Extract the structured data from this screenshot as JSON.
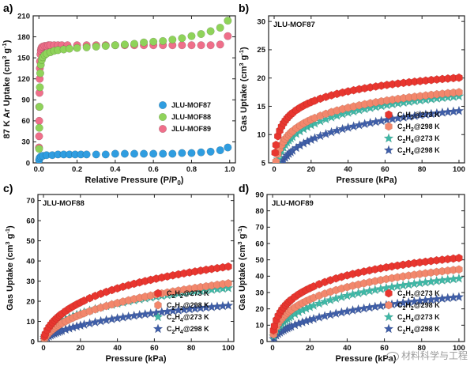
{
  "colors": {
    "red": "#e8362f",
    "salmon": "#f2876c",
    "teal": "#3fb8a6",
    "navy": "#3f5ea8",
    "blue": "#2f9de0",
    "green": "#8fd35a",
    "pink": "#ef6f8a"
  },
  "watermark": "材料科学与工程",
  "chart_data": [
    {
      "panel": "a)",
      "type": "scatter",
      "title": "",
      "xlabel": "Relative Pressure (P/P0)",
      "ylabel": "87 K Ar Uptake (cm3 g-1)",
      "xlim": [
        -0.03,
        1.03
      ],
      "ylim": [
        0,
        210
      ],
      "xticks": [
        0.0,
        0.2,
        0.4,
        0.6,
        0.8,
        1.0
      ],
      "yticks": [
        0,
        30,
        60,
        90,
        120,
        150,
        180,
        210
      ],
      "legend_position": "right",
      "series": [
        {
          "name": "JLU-MOF87",
          "color": "blue",
          "marker": "circle",
          "x": [
            0.001,
            0.004,
            0.01,
            0.02,
            0.04,
            0.07,
            0.1,
            0.13,
            0.16,
            0.19,
            0.22,
            0.25,
            0.3,
            0.35,
            0.4,
            0.45,
            0.5,
            0.55,
            0.6,
            0.65,
            0.7,
            0.75,
            0.8,
            0.85,
            0.9,
            0.95,
            0.99
          ],
          "y": [
            4,
            7,
            9,
            10,
            11,
            11,
            12,
            12,
            12,
            12,
            12,
            12,
            12,
            12,
            13,
            13,
            13,
            13,
            13,
            13,
            13,
            14,
            14,
            15,
            16,
            18,
            22
          ]
        },
        {
          "name": "JLU-MOF88",
          "color": "green",
          "marker": "circle",
          "x": [
            0.001,
            0.002,
            0.003,
            0.005,
            0.007,
            0.01,
            0.015,
            0.02,
            0.03,
            0.04,
            0.06,
            0.08,
            0.1,
            0.13,
            0.16,
            0.2,
            0.25,
            0.3,
            0.35,
            0.4,
            0.45,
            0.5,
            0.55,
            0.6,
            0.65,
            0.7,
            0.75,
            0.8,
            0.85,
            0.9,
            0.95,
            0.99
          ],
          "y": [
            20,
            50,
            80,
            108,
            128,
            140,
            147,
            151,
            154,
            156,
            158,
            160,
            161,
            162,
            163,
            164,
            165,
            166,
            167,
            168,
            169,
            170,
            172,
            173,
            174,
            176,
            178,
            181,
            184,
            188,
            193,
            203
          ]
        },
        {
          "name": "JLU-MOF89",
          "color": "pink",
          "marker": "circle",
          "x": [
            0.0005,
            0.001,
            0.0015,
            0.002,
            0.003,
            0.004,
            0.005,
            0.006,
            0.008,
            0.01,
            0.012,
            0.015,
            0.02,
            0.03,
            0.04,
            0.05,
            0.06,
            0.08,
            0.1,
            0.12,
            0.15,
            0.2,
            0.25,
            0.3,
            0.35,
            0.4,
            0.45,
            0.5,
            0.55,
            0.6,
            0.65,
            0.7,
            0.75,
            0.8,
            0.85,
            0.9,
            0.95,
            0.99
          ],
          "y": [
            22,
            38,
            60,
            80,
            100,
            120,
            135,
            145,
            155,
            160,
            163,
            165,
            166,
            167,
            167,
            168,
            168,
            168,
            168,
            168,
            168,
            168,
            168,
            168,
            168,
            168,
            168,
            168,
            168,
            168,
            168,
            168,
            168,
            168,
            168,
            168,
            169,
            181
          ]
        }
      ]
    },
    {
      "panel": "b)",
      "type": "scatter",
      "title": "JLU-MOF87",
      "xlabel": "Pressure (kPa)",
      "ylabel": "Gas Uptake (cm3 g-1)",
      "xlim": [
        -3,
        103
      ],
      "ylim": [
        5,
        31
      ],
      "xticks": [
        0,
        20,
        40,
        60,
        80,
        100
      ],
      "yticks": [
        5,
        10,
        15,
        20,
        25,
        30
      ],
      "legend_position": "lower-right",
      "series": [
        {
          "name": "C2H2@273 K",
          "color": "red",
          "marker": "hexagon",
          "a": 31.5,
          "b": 0.35,
          "n": 0.35,
          "start": 1
        },
        {
          "name": "C2H2@298 K",
          "color": "salmon",
          "marker": "hexagon",
          "a": 29.0,
          "b": 0.22,
          "n": 0.42,
          "start": 1
        },
        {
          "name": "C2H4@273 K",
          "color": "teal",
          "marker": "star",
          "a": 28.5,
          "b": 0.18,
          "n": 0.45,
          "start": 2
        },
        {
          "name": "C2H4@298 K",
          "color": "navy",
          "marker": "star",
          "a": 26.0,
          "b": 0.12,
          "n": 0.5,
          "start": 2
        }
      ]
    },
    {
      "panel": "c)",
      "type": "scatter",
      "title": "JLU-MOF88",
      "xlabel": "Pressure (kPa)",
      "ylabel": "Gas Uptake (cm3 g-1)",
      "xlim": [
        -3,
        103
      ],
      "ylim": [
        0,
        73
      ],
      "xticks": [
        0,
        20,
        40,
        60,
        80,
        100
      ],
      "yticks": [
        0,
        10,
        20,
        30,
        40,
        50,
        60,
        70
      ],
      "legend_position": "lower-right",
      "series": [
        {
          "name": "C2H2@273 K",
          "color": "red",
          "marker": "hexagon",
          "a": 80.0,
          "b": 0.05,
          "n": 0.62,
          "start": 1
        },
        {
          "name": "C2H2@298 K",
          "color": "salmon",
          "marker": "hexagon",
          "a": 75.0,
          "b": 0.03,
          "n": 0.66,
          "start": 1
        },
        {
          "name": "C2H4@273 K",
          "color": "teal",
          "marker": "star",
          "a": 60.0,
          "b": 0.05,
          "n": 0.6,
          "start": 1
        },
        {
          "name": "C2H4@298 K",
          "color": "navy",
          "marker": "star",
          "a": 52.0,
          "b": 0.025,
          "n": 0.66,
          "start": 1
        }
      ]
    },
    {
      "panel": "d)",
      "type": "scatter",
      "title": "JLU-MOF89",
      "xlabel": "Pressure (kPa)",
      "ylabel": "Gas Uptake (cm3 g-1)",
      "xlim": [
        -3,
        103
      ],
      "ylim": [
        0,
        90
      ],
      "xticks": [
        0,
        20,
        40,
        60,
        80,
        100
      ],
      "yticks": [
        0,
        10,
        20,
        30,
        40,
        50,
        60,
        70,
        80,
        90
      ],
      "legend_position": "lower-right",
      "series": [
        {
          "name": "C2H2@273 K",
          "color": "red",
          "marker": "hexagon",
          "a": 90.0,
          "b": 0.12,
          "n": 0.52,
          "start": 1
        },
        {
          "name": "C2H2@298 K",
          "color": "salmon",
          "marker": "hexagon",
          "a": 86.0,
          "b": 0.08,
          "n": 0.56,
          "start": 1
        },
        {
          "name": "C2H4@273 K",
          "color": "teal",
          "marker": "star",
          "a": 83.0,
          "b": 0.06,
          "n": 0.58,
          "start": 1
        },
        {
          "name": "C2H4@298 K",
          "color": "navy",
          "marker": "star",
          "a": 72.0,
          "b": 0.035,
          "n": 0.62,
          "start": 1
        }
      ]
    }
  ]
}
